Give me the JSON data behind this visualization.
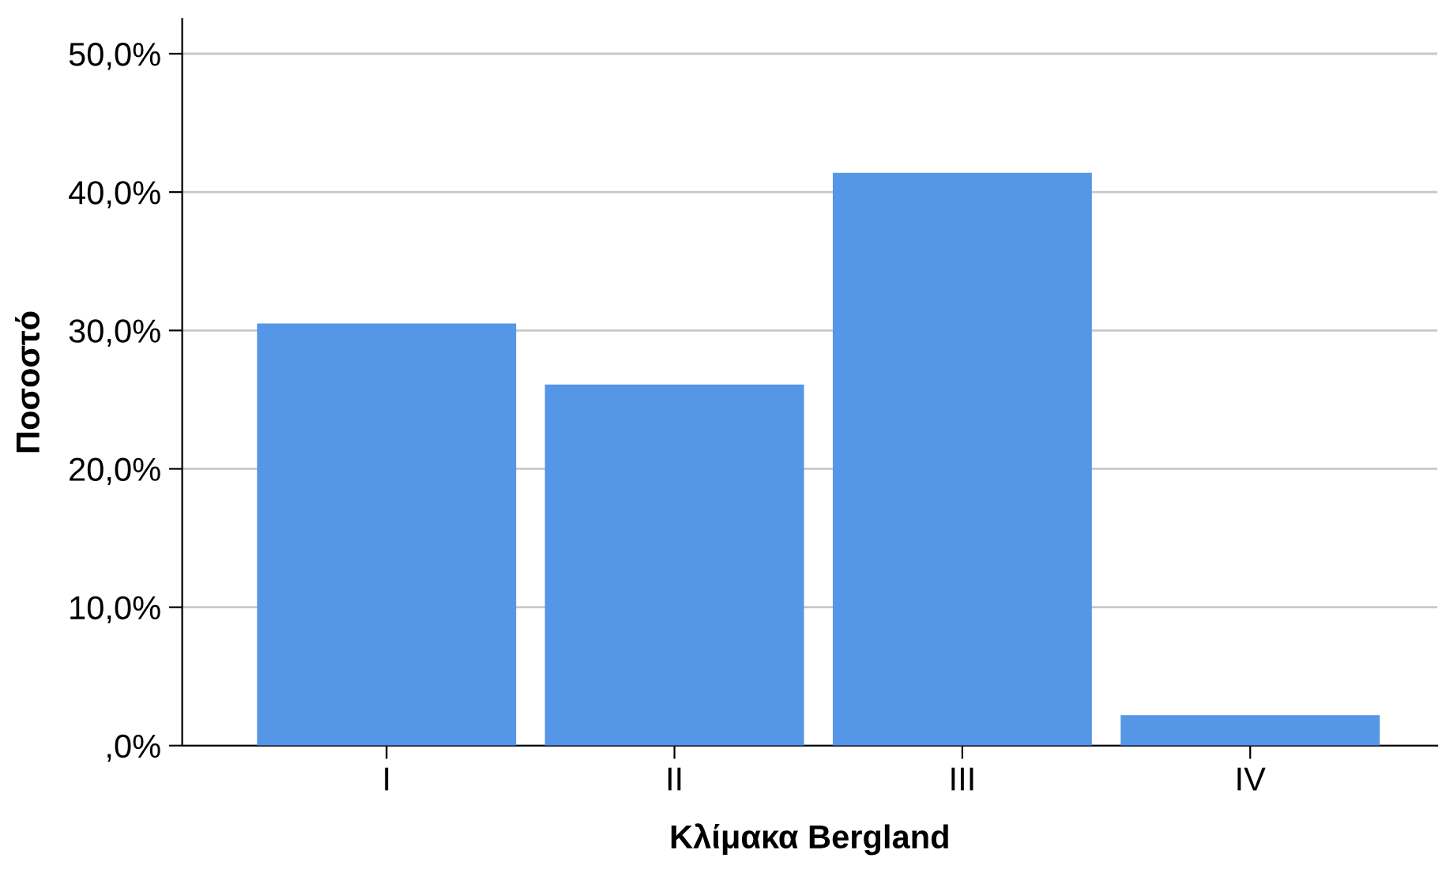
{
  "chart_data": {
    "type": "bar",
    "xlabel": "Κλίμακα Bergland",
    "ylabel": "Ποσοστό",
    "categories": [
      "I",
      "II",
      "III",
      "IV"
    ],
    "values": [
      30.5,
      26.1,
      41.4,
      2.2
    ],
    "color": "#5596e6",
    "ylim": [
      0,
      52.5
    ],
    "yticks": [
      {
        "value": 0,
        "label": ",0%"
      },
      {
        "value": 10,
        "label": "10,0%"
      },
      {
        "value": 20,
        "label": "20,0%"
      },
      {
        "value": 30,
        "label": "30,0%"
      },
      {
        "value": 40,
        "label": "40,0%"
      },
      {
        "value": 50,
        "label": "50,0%"
      }
    ],
    "grid": "y",
    "legend": false
  }
}
